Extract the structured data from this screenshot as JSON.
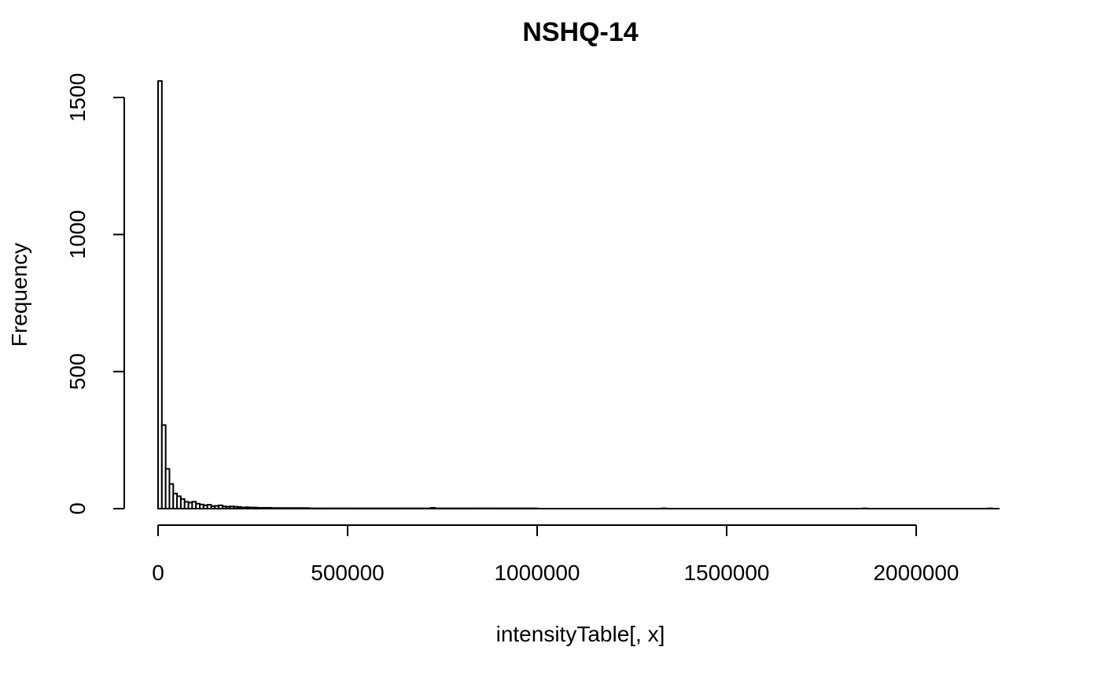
{
  "chart_data": {
    "type": "bar",
    "title": "NSHQ-14",
    "xlabel": "intensityTable[, x]",
    "ylabel": "Frequency",
    "xlim": [
      0,
      2000000
    ],
    "ylim": [
      0,
      1500
    ],
    "x_ticks": [
      0,
      500000,
      1000000,
      1500000,
      2000000
    ],
    "y_ticks": [
      0,
      500,
      1000,
      1500
    ],
    "bin_width": 10000,
    "bin_start": 0,
    "values": [
      1560,
      305,
      145,
      90,
      55,
      45,
      35,
      25,
      22,
      25,
      18,
      15,
      12,
      14,
      9,
      10,
      12,
      8,
      7,
      8,
      7,
      6,
      4,
      5,
      4,
      4,
      3,
      3,
      3,
      3,
      2,
      2,
      2,
      2,
      2,
      2,
      2,
      2,
      2,
      2,
      1,
      1,
      1,
      1,
      1,
      1,
      1,
      1,
      1,
      1,
      1,
      1,
      1,
      1,
      1,
      1,
      1,
      1,
      1,
      1,
      1,
      1,
      1,
      1,
      1,
      1,
      1,
      1,
      1,
      1,
      1,
      1,
      3,
      1,
      1,
      1,
      1,
      1,
      1,
      1,
      1,
      1,
      1,
      1,
      1,
      1,
      1,
      1,
      1,
      1,
      1,
      1,
      1,
      1,
      1,
      1,
      1,
      1,
      1,
      1,
      0,
      0,
      0,
      0,
      0,
      0,
      0,
      0,
      0,
      0,
      0,
      0,
      0,
      0,
      0,
      0,
      0,
      0,
      0,
      0,
      0,
      0,
      0,
      0,
      0,
      0,
      0,
      0,
      0,
      0,
      0,
      0,
      0,
      1,
      0,
      0,
      0,
      0,
      0,
      0,
      0,
      0,
      0,
      0,
      0,
      0,
      0,
      0,
      0,
      0,
      0,
      0,
      0,
      0,
      0,
      0,
      0,
      0,
      0,
      0,
      0,
      0,
      0,
      0,
      0,
      0,
      0,
      0,
      0,
      0,
      0,
      0,
      0,
      0,
      0,
      0,
      0,
      0,
      0,
      0,
      0,
      0,
      0,
      0,
      0,
      0,
      1,
      0,
      0,
      0,
      0,
      0,
      0,
      0,
      0,
      0,
      0,
      0,
      0,
      0,
      0,
      0,
      0,
      0,
      0,
      0,
      0,
      0,
      0,
      0,
      0,
      0,
      0,
      0,
      0,
      0,
      0,
      0,
      0,
      1,
      0,
      0
    ]
  }
}
